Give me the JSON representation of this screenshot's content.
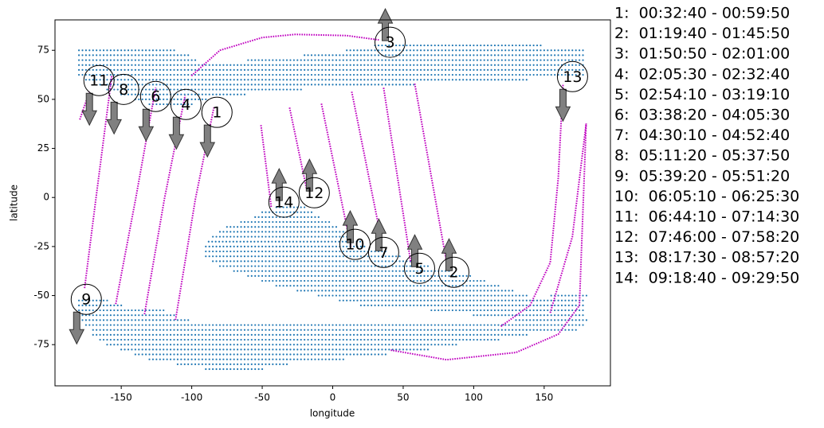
{
  "chart_data": {
    "type": "scatter",
    "xlabel": "longitude",
    "ylabel": "latitude",
    "xlim": [
      -197,
      197
    ],
    "ylim": [
      -96,
      90.5
    ],
    "xticks": [
      -150,
      -100,
      -50,
      0,
      50,
      100,
      150
    ],
    "yticks": [
      -75,
      -50,
      -25,
      0,
      25,
      50,
      75
    ],
    "coverage": {
      "color": "#1f77b4",
      "rows": [
        {
          "lat": 77.5,
          "lon": [
            [
              30,
              150
            ]
          ]
        },
        {
          "lat": 75,
          "lon": [
            [
              -180,
              -110
            ],
            [
              10,
              180
            ]
          ]
        },
        {
          "lat": 72.5,
          "lon": [
            [
              -180,
              -100
            ],
            [
              -20,
              180
            ]
          ]
        },
        {
          "lat": 70,
          "lon": [
            [
              -180,
              -95
            ],
            [
              -60,
              180
            ]
          ]
        },
        {
          "lat": 67.5,
          "lon": [
            [
              -180,
              180
            ]
          ]
        },
        {
          "lat": 65,
          "lon": [
            [
              -180,
              180
            ]
          ]
        },
        {
          "lat": 62.5,
          "lon": [
            [
              -180,
              180
            ]
          ]
        },
        {
          "lat": 60,
          "lon": [
            [
              -175,
              140
            ]
          ]
        },
        {
          "lat": 57.5,
          "lon": [
            [
              -165,
              60
            ]
          ]
        },
        {
          "lat": 55,
          "lon": [
            [
              -160,
              -20
            ]
          ]
        },
        {
          "lat": 52.5,
          "lon": [
            [
              -150,
              -60
            ]
          ]
        },
        {
          "lat": 50,
          "lon": [
            [
              -140,
              -90
            ]
          ]
        },
        {
          "lat": 47.5,
          "lon": [
            [
              -130,
              -100
            ]
          ]
        },
        {
          "lat": -5,
          "lon": [
            [
              -40,
              -20
            ]
          ]
        },
        {
          "lat": -7.5,
          "lon": [
            [
              -50,
              -15
            ]
          ]
        },
        {
          "lat": -10,
          "lon": [
            [
              -55,
              -10
            ]
          ]
        },
        {
          "lat": -12.5,
          "lon": [
            [
              -65,
              0
            ]
          ]
        },
        {
          "lat": -15,
          "lon": [
            [
              -75,
              5
            ]
          ]
        },
        {
          "lat": -17.5,
          "lon": [
            [
              -80,
              10
            ]
          ]
        },
        {
          "lat": -20,
          "lon": [
            [
              -85,
              15
            ]
          ]
        },
        {
          "lat": -22.5,
          "lon": [
            [
              -88,
              20
            ]
          ]
        },
        {
          "lat": -25,
          "lon": [
            [
              -90,
              25
            ]
          ]
        },
        {
          "lat": -27.5,
          "lon": [
            [
              -90,
              40
            ]
          ]
        },
        {
          "lat": -30,
          "lon": [
            [
              -90,
              50
            ]
          ]
        },
        {
          "lat": -32.5,
          "lon": [
            [
              -85,
              60
            ]
          ]
        },
        {
          "lat": -35,
          "lon": [
            [
              -80,
              70
            ]
          ]
        },
        {
          "lat": -37.5,
          "lon": [
            [
              -70,
              85
            ]
          ]
        },
        {
          "lat": -40,
          "lon": [
            [
              -60,
              100
            ]
          ]
        },
        {
          "lat": -42.5,
          "lon": [
            [
              -50,
              110
            ]
          ]
        },
        {
          "lat": -45,
          "lon": [
            [
              -40,
              120
            ]
          ]
        },
        {
          "lat": -47.5,
          "lon": [
            [
              -25,
              130
            ]
          ]
        },
        {
          "lat": -50,
          "lon": [
            [
              -10,
              140
            ],
            [
              155,
              180
            ]
          ]
        },
        {
          "lat": -52.5,
          "lon": [
            [
              -180,
              -160
            ],
            [
              5,
              180
            ]
          ]
        },
        {
          "lat": -55,
          "lon": [
            [
              -180,
              -150
            ],
            [
              20,
              180
            ]
          ]
        },
        {
          "lat": -57.5,
          "lon": [
            [
              -180,
              -120
            ],
            [
              70,
              180
            ]
          ]
        },
        {
          "lat": -60,
          "lon": [
            [
              -180,
              -110
            ],
            [
              100,
              180
            ]
          ]
        },
        {
          "lat": -62.5,
          "lon": [
            [
              -180,
              -100
            ],
            [
              130,
              180
            ]
          ]
        },
        {
          "lat": -65,
          "lon": [
            [
              -175,
              180
            ]
          ]
        },
        {
          "lat": -67.5,
          "lon": [
            [
              -170,
              175
            ]
          ]
        },
        {
          "lat": -70,
          "lon": [
            [
              -170,
              140
            ]
          ]
        },
        {
          "lat": -72.5,
          "lon": [
            [
              -165,
              120
            ]
          ]
        },
        {
          "lat": -75,
          "lon": [
            [
              -160,
              90
            ]
          ]
        },
        {
          "lat": -77.5,
          "lon": [
            [
              -150,
              70
            ]
          ]
        },
        {
          "lat": -80,
          "lon": [
            [
              -140,
              40
            ]
          ]
        },
        {
          "lat": -82.5,
          "lon": [
            [
              -130,
              10
            ]
          ]
        },
        {
          "lat": -85,
          "lon": [
            [
              -110,
              -30
            ]
          ]
        },
        {
          "lat": -87.5,
          "lon": [
            [
              -90,
              -50
            ]
          ]
        }
      ]
    },
    "track_color": "#bf00bf",
    "tracks": [
      {
        "x": [
          -111.5,
          -97.4,
          -84.3
        ],
        "y": [
          -62.4,
          -0.8,
          45.8
        ]
      },
      {
        "x": [
          -133.5,
          -119.4,
          -104.7
        ],
        "y": [
          -59.5,
          -0.8,
          51.9
        ]
      },
      {
        "x": [
          -153.9,
          -139.8,
          -125.6
        ],
        "y": [
          -54.3,
          -0.8,
          56.0
        ]
      },
      {
        "x": [
          -176,
          -168,
          -156.7
        ],
        "y": [
          -46.2,
          -0.8,
          62.0
        ]
      },
      {
        "x": [
          -179.4,
          -172.6
        ],
        "y": [
          39.7,
          53.9
        ]
      },
      {
        "x": [
          -50.9,
          -43.6
        ],
        "y": [
          36.9,
          -4.9
        ]
      },
      {
        "x": [
          -30.6,
          -18.2
        ],
        "y": [
          45.8,
          3.2
        ]
      },
      {
        "x": [
          -8,
          12.9
        ],
        "y": [
          47.8,
          -25.1
        ]
      },
      {
        "x": [
          13.5,
          34.4
        ],
        "y": [
          53.9,
          -21.1
        ]
      },
      {
        "x": [
          36.1,
          55.4
        ],
        "y": [
          55.9,
          -33.2
        ]
      },
      {
        "x": [
          58.2,
          80.8
        ],
        "y": [
          58,
          -33.2
        ]
      },
      {
        "x": [
          -100.2,
          -80,
          -50,
          -26.6,
          10,
          32.7
        ],
        "y": [
          62,
          75,
          81.5,
          83.1,
          82.5,
          80.3
        ]
      },
      {
        "x": [
          119.3,
          140,
          154.3,
          160,
          163.4
        ],
        "y": [
          -65.7,
          -55,
          -33.2,
          10,
          58
        ]
      },
      {
        "x": [
          41.2,
          80.8,
          130,
          160,
          175,
          179.8
        ],
        "y": [
          -77.8,
          -82.7,
          -79,
          -69.7,
          -55,
          37.7
        ]
      },
      {
        "x": [
          154.3,
          170,
          179.8
        ],
        "y": [
          -58.8,
          -20,
          37.7
        ]
      }
    ],
    "passes": [
      {
        "label": "1",
        "lon": -82.1,
        "lat": 43.4,
        "arrow": "down"
      },
      {
        "label": "2",
        "lon": 85.9,
        "lat": -38.1,
        "arrow": "up"
      },
      {
        "label": "3",
        "lon": 40.7,
        "lat": 79.1,
        "arrow": "up"
      },
      {
        "label": "4",
        "lon": -104.1,
        "lat": 47.4,
        "arrow": "down"
      },
      {
        "label": "5",
        "lon": 61.6,
        "lat": -36.1,
        "arrow": "up"
      },
      {
        "label": "6",
        "lon": -125.6,
        "lat": 51.5,
        "arrow": "down"
      },
      {
        "label": "7",
        "lon": 36.1,
        "lat": -28,
        "arrow": "up"
      },
      {
        "label": "8",
        "lon": -148.3,
        "lat": 55.1,
        "arrow": "down"
      },
      {
        "label": "9",
        "lon": -174.8,
        "lat": -51.9,
        "arrow": "down"
      },
      {
        "label": "10",
        "lon": 15.8,
        "lat": -23.9,
        "arrow": "up"
      },
      {
        "label": "11",
        "lon": -165.8,
        "lat": 59.6,
        "arrow": "down"
      },
      {
        "label": "12",
        "lon": -13.1,
        "lat": 2.4,
        "arrow": "up"
      },
      {
        "label": "13",
        "lon": 170.1,
        "lat": 61.6,
        "arrow": "down"
      },
      {
        "label": "14",
        "lon": -34.6,
        "lat": -2.4,
        "arrow": "up"
      }
    ],
    "schedule": [
      "1:  00:32:40 - 00:59:50",
      "2:  01:19:40 - 01:45:50",
      "3:  01:50:50 - 02:01:00",
      "4:  02:05:30 - 02:32:40",
      "5:  02:54:10 - 03:19:10",
      "6:  03:38:20 - 04:05:30",
      "7:  04:30:10 - 04:52:40",
      "8:  05:11:20 - 05:37:50",
      "9:  05:39:20 - 05:51:20",
      "10:  06:05:10 - 06:25:30",
      "11:  06:44:10 - 07:14:30",
      "12:  07:46:00 - 07:58:20",
      "13:  08:17:30 - 08:57:20",
      "14:  09:18:40 - 09:29:50"
    ]
  }
}
